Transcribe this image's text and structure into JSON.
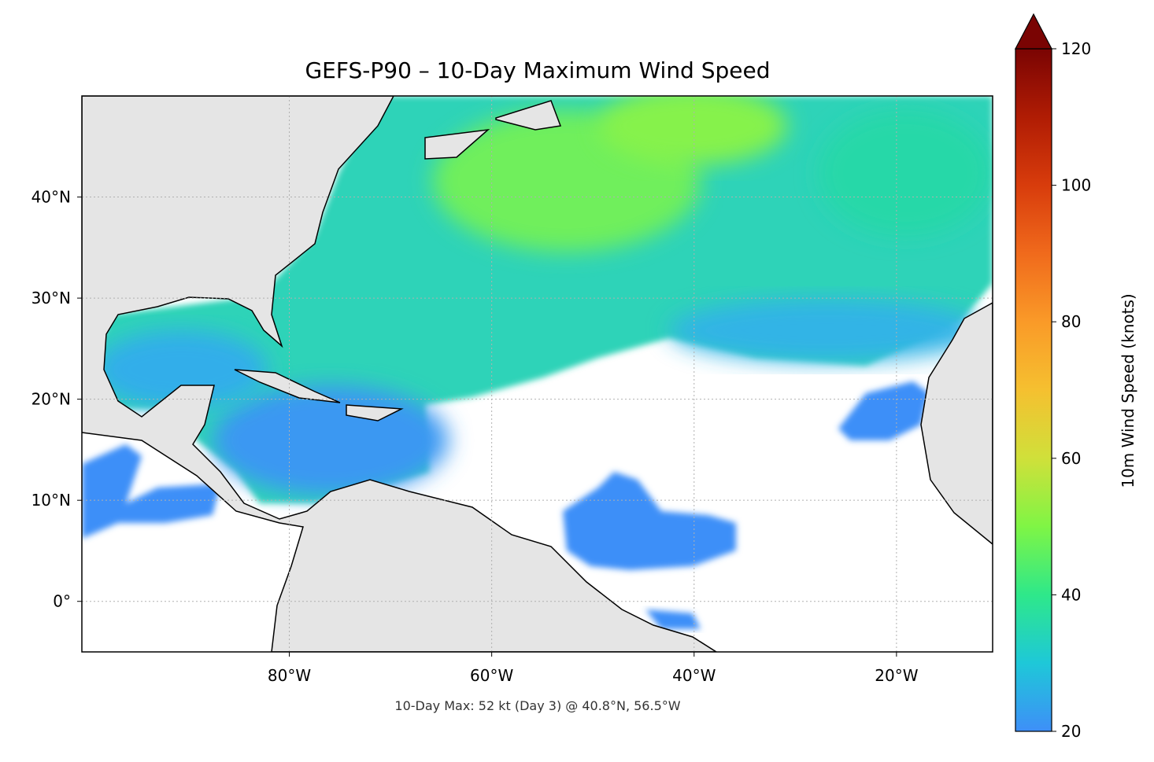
{
  "chart_data": {
    "type": "map",
    "title": "GEFS-P90 – 10-Day Maximum Wind Speed",
    "annotation": "10-Day Max: 52 kt (Day 3) @ 40.8°N, 56.5°W",
    "xlim": [
      -100.5,
      -10.5
    ],
    "ylim": [
      -5,
      50
    ],
    "xticks": [
      {
        "value": -80,
        "label": "80°W"
      },
      {
        "value": -60,
        "label": "60°W"
      },
      {
        "value": -40,
        "label": "40°W"
      },
      {
        "value": -20,
        "label": "20°W"
      }
    ],
    "yticks": [
      {
        "value": 0,
        "label": "0°"
      },
      {
        "value": 10,
        "label": "10°N"
      },
      {
        "value": 20,
        "label": "20°N"
      },
      {
        "value": 30,
        "label": "30°N"
      },
      {
        "value": 40,
        "label": "40°N"
      }
    ],
    "grid": true,
    "colorbar": {
      "label": "10m Wind Speed (knots)",
      "lim": [
        20,
        120
      ],
      "ticks": [
        20,
        40,
        60,
        80,
        100,
        120
      ],
      "colors": [
        "#3e8ff8",
        "#1ec8d8",
        "#2ee88a",
        "#7ff545",
        "#d0e03a",
        "#f5c030",
        "#fa9a28",
        "#f06a1c",
        "#d83c0c",
        "#b01c04",
        "#7a0403"
      ]
    }
  }
}
